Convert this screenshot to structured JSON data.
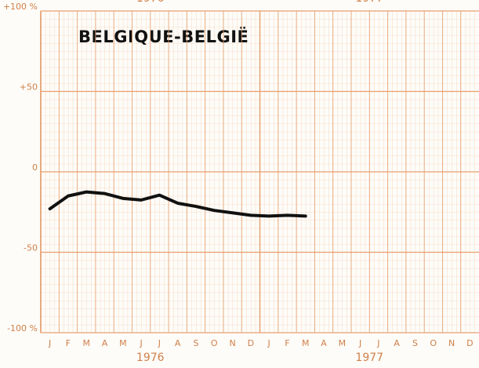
{
  "chart_data": {
    "type": "line",
    "title": "BELGIQUE-BELGIË",
    "categories": [
      "J",
      "F",
      "M",
      "A",
      "M",
      "J",
      "J",
      "A",
      "S",
      "O",
      "N",
      "D",
      "J",
      "F",
      "M",
      "A",
      "M",
      "J",
      "J",
      "A",
      "S",
      "O",
      "N",
      "D"
    ],
    "years": [
      "1976",
      "1977"
    ],
    "series": [
      {
        "name": "BELGIQUE-BELGIË",
        "color": "#111111",
        "values": [
          -23,
          -15,
          -12.5,
          -13.5,
          -16.5,
          -17.5,
          -14.5,
          -19.5,
          -21.5,
          -24,
          -25.5,
          -27,
          -27.5,
          -27,
          -27.5,
          null,
          null,
          null,
          null,
          null,
          null,
          null,
          null,
          null
        ]
      }
    ],
    "ylim": [
      -100,
      100
    ],
    "yticks": [
      {
        "value": 100,
        "label": "+100 %"
      },
      {
        "value": 50,
        "label": "+50"
      },
      0,
      -50,
      {
        "value": -100,
        "label": "-100 %"
      }
    ],
    "grid": true,
    "grid_color": "#e8a070"
  }
}
